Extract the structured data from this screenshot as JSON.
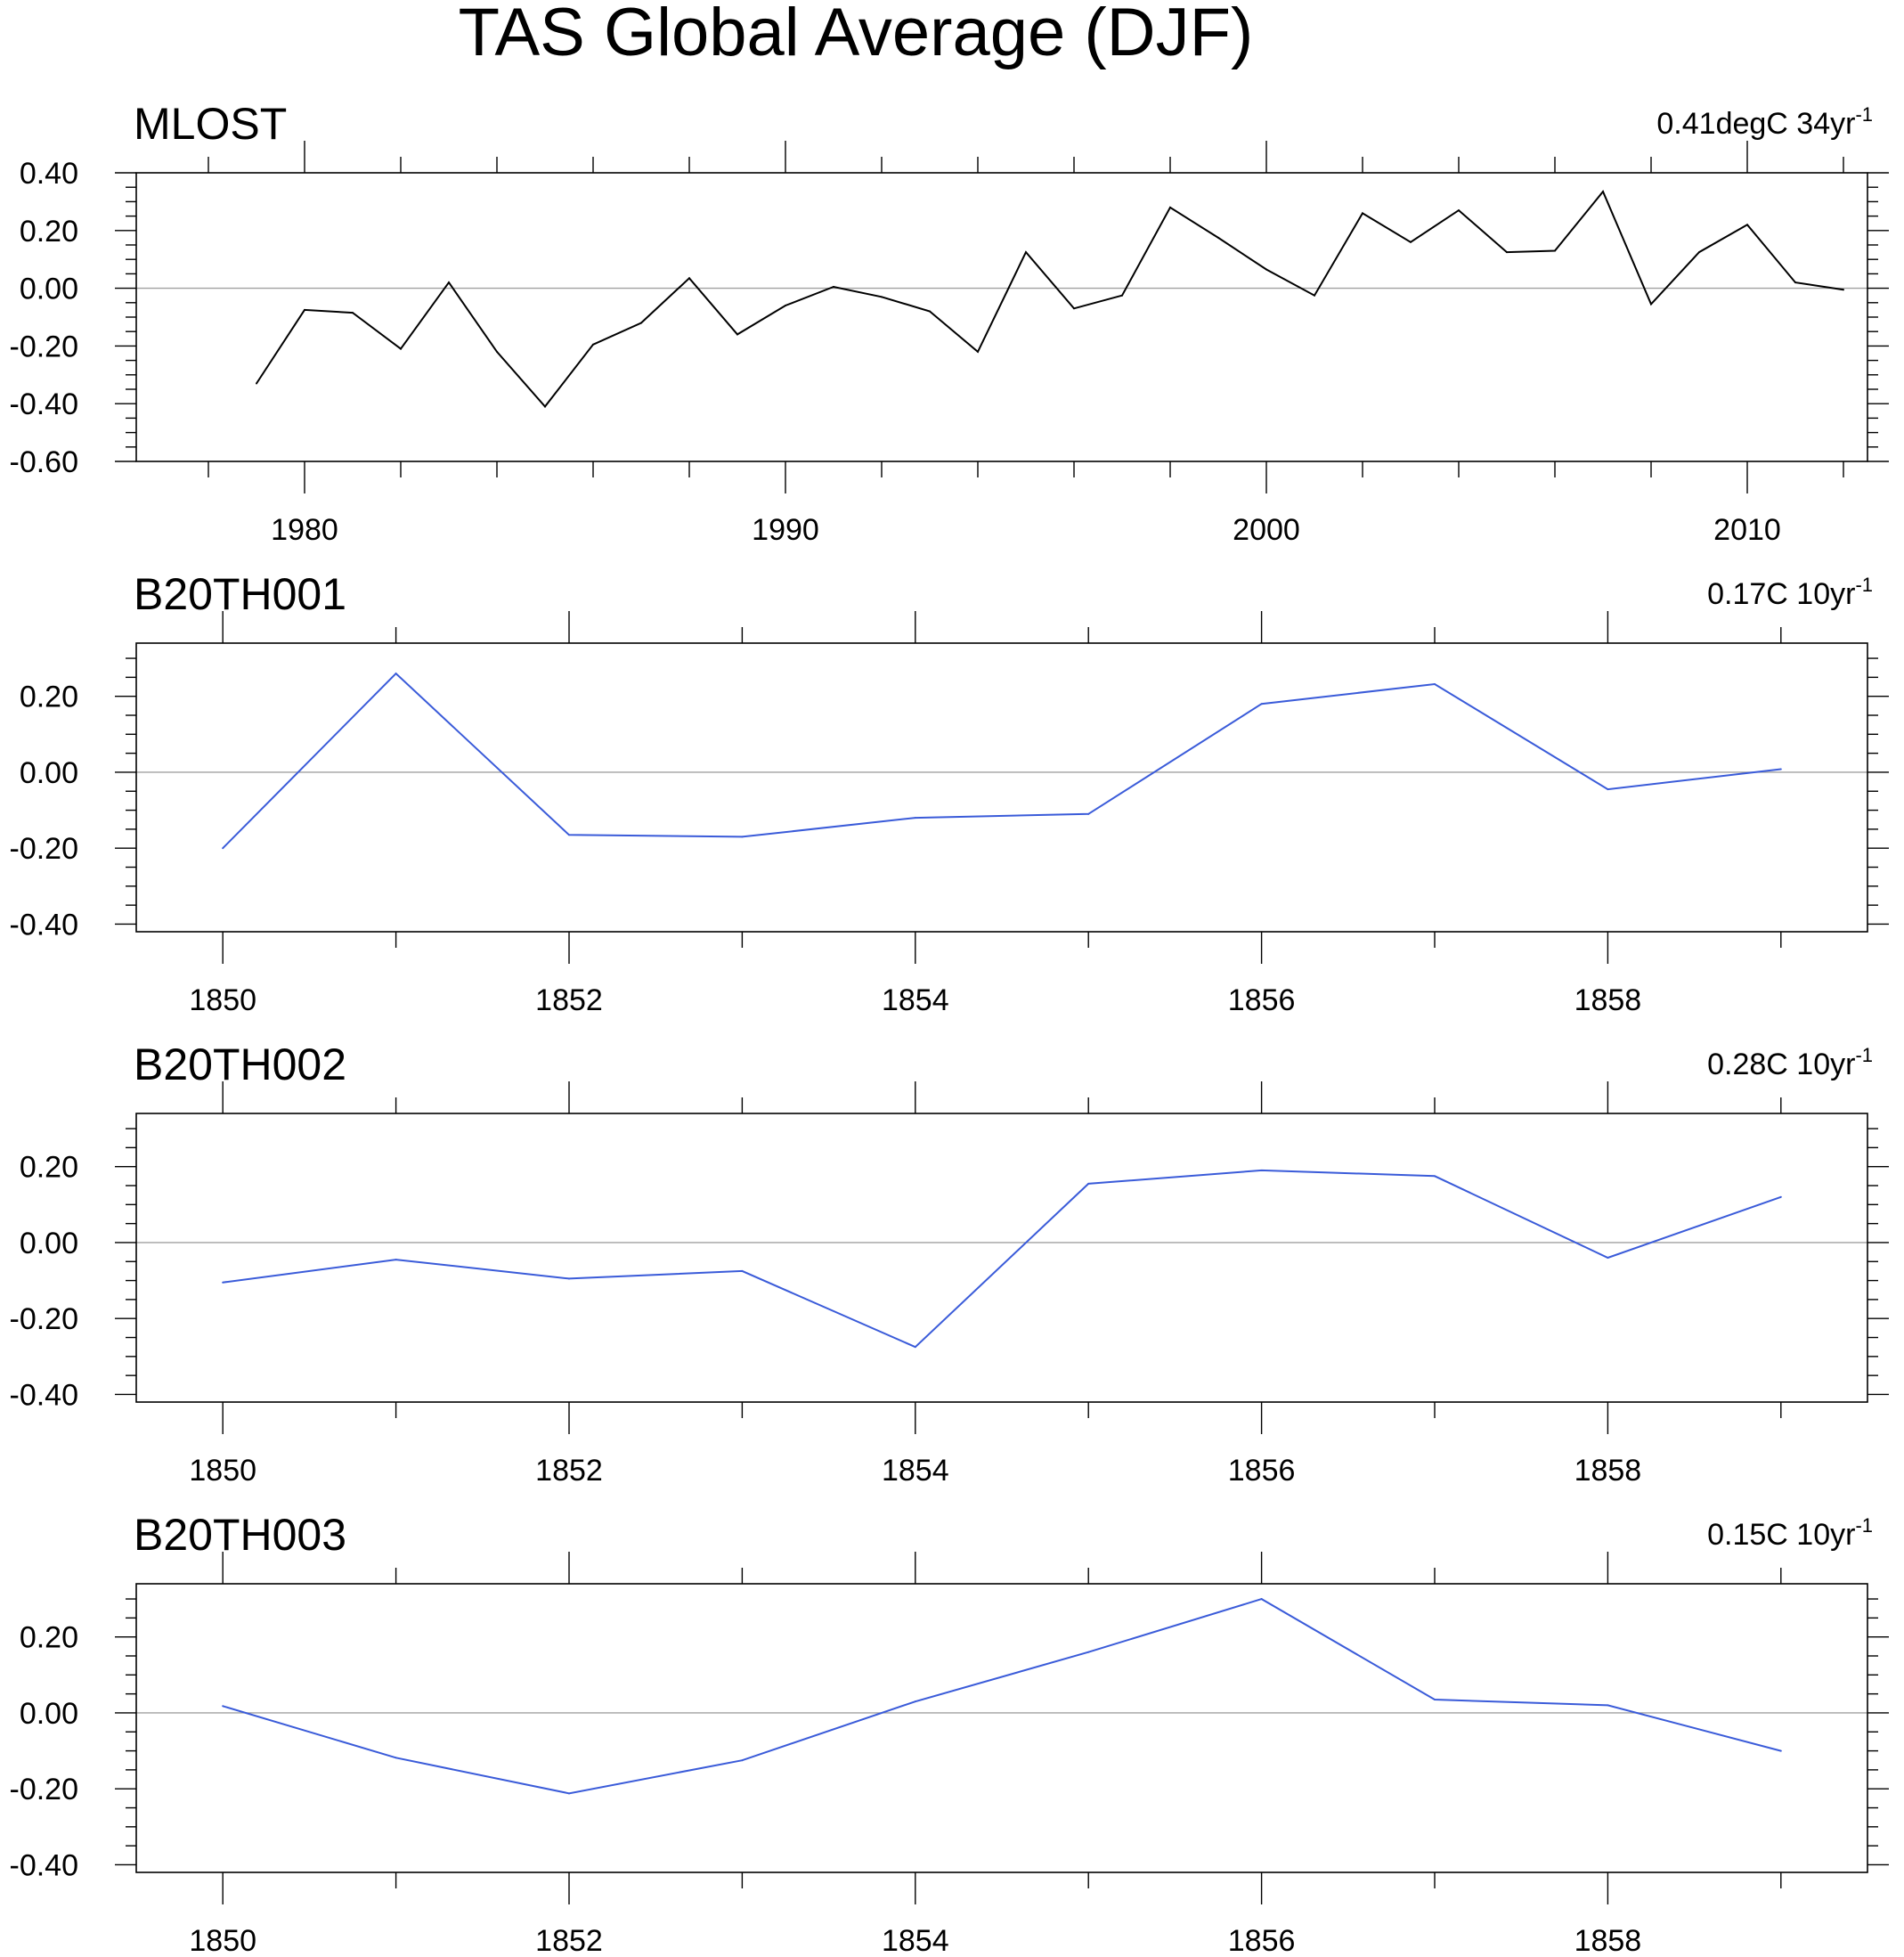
{
  "chart_data": {
    "type": "line",
    "title": "TAS Global Average (DJF)",
    "colors": {
      "observed": "#000000",
      "model": "#3a5bd9",
      "zero_line": "#a0a0a0"
    },
    "panels": [
      {
        "name": "MLOST",
        "trend_value": "0.41degC 34yr",
        "trend_exponent": "-1",
        "ylim": [
          -0.6,
          0.4
        ],
        "yticks": [
          0.4,
          0.2,
          0.0,
          -0.2,
          -0.4,
          -0.6
        ],
        "yticklabels": [
          "0.40",
          "0.20",
          "0.00",
          "-0.20",
          "-0.40",
          "-0.60"
        ],
        "xlim": [
          1976.5,
          2012.5
        ],
        "xticks": [
          1980,
          1990,
          2000,
          2010
        ],
        "xticklabels": [
          "1980",
          "1990",
          "2000",
          "2010"
        ],
        "color": "#000000",
        "x": [
          1979,
          1980,
          1981,
          1982,
          1983,
          1984,
          1985,
          1986,
          1987,
          1988,
          1989,
          1990,
          1991,
          1992,
          1993,
          1994,
          1995,
          1996,
          1997,
          1998,
          1999,
          2000,
          2001,
          2002,
          2003,
          2004,
          2005,
          2006,
          2007,
          2008,
          2009,
          2010,
          2011,
          2012
        ],
        "y": [
          -0.33,
          -0.075,
          -0.085,
          -0.21,
          0.02,
          -0.22,
          -0.41,
          -0.195,
          -0.12,
          0.035,
          -0.16,
          -0.06,
          0.005,
          -0.03,
          -0.08,
          -0.22,
          0.125,
          -0.07,
          -0.025,
          0.28,
          0.175,
          0.065,
          -0.025,
          0.26,
          0.16,
          0.27,
          0.125,
          0.13,
          0.335,
          -0.055,
          0.125,
          0.22,
          0.02,
          -0.005
        ]
      },
      {
        "name": "B20TH001",
        "trend_value": "0.17C 10yr",
        "trend_exponent": "-1",
        "ylim": [
          -0.42,
          0.34
        ],
        "yticks": [
          0.2,
          0.0,
          -0.2,
          -0.4
        ],
        "yticklabels": [
          "0.20",
          "0.00",
          "-0.20",
          "-0.40"
        ],
        "xlim": [
          1849.5,
          1859.5
        ],
        "xticks": [
          1850,
          1852,
          1854,
          1856,
          1858
        ],
        "xticklabels": [
          "1850",
          "1852",
          "1854",
          "1856",
          "1858"
        ],
        "color": "#3a5bd9",
        "x": [
          1850,
          1851,
          1852,
          1853,
          1854,
          1855,
          1856,
          1857,
          1858,
          1859
        ],
        "y": [
          -0.2,
          0.26,
          -0.165,
          -0.17,
          -0.12,
          -0.11,
          0.18,
          0.232,
          -0.045,
          0.008
        ]
      },
      {
        "name": "B20TH002",
        "trend_value": "0.28C 10yr",
        "trend_exponent": "-1",
        "ylim": [
          -0.42,
          0.34
        ],
        "yticks": [
          0.2,
          0.0,
          -0.2,
          -0.4
        ],
        "yticklabels": [
          "0.20",
          "0.00",
          "-0.20",
          "-0.40"
        ],
        "xlim": [
          1849.5,
          1859.5
        ],
        "xticks": [
          1850,
          1852,
          1854,
          1856,
          1858
        ],
        "xticklabels": [
          "1850",
          "1852",
          "1854",
          "1856",
          "1858"
        ],
        "color": "#3a5bd9",
        "x": [
          1850,
          1851,
          1852,
          1853,
          1854,
          1855,
          1856,
          1857,
          1858,
          1859
        ],
        "y": [
          -0.105,
          -0.045,
          -0.095,
          -0.075,
          -0.275,
          0.155,
          0.19,
          0.175,
          -0.04,
          0.12
        ]
      },
      {
        "name": "B20TH003",
        "trend_value": "0.15C 10yr",
        "trend_exponent": "-1",
        "ylim": [
          -0.42,
          0.34
        ],
        "yticks": [
          0.2,
          0.0,
          -0.2,
          -0.4
        ],
        "yticklabels": [
          "0.20",
          "0.00",
          "-0.20",
          "-0.40"
        ],
        "xlim": [
          1849.5,
          1859.5
        ],
        "xticks": [
          1850,
          1852,
          1854,
          1856,
          1858
        ],
        "xticklabels": [
          "1850",
          "1852",
          "1854",
          "1856",
          "1858"
        ],
        "color": "#3a5bd9",
        "x": [
          1850,
          1851,
          1852,
          1853,
          1854,
          1855,
          1856,
          1857,
          1858,
          1859
        ],
        "y": [
          0.018,
          -0.118,
          -0.212,
          -0.125,
          0.03,
          0.16,
          0.3,
          0.035,
          0.02,
          -0.1
        ]
      }
    ]
  }
}
